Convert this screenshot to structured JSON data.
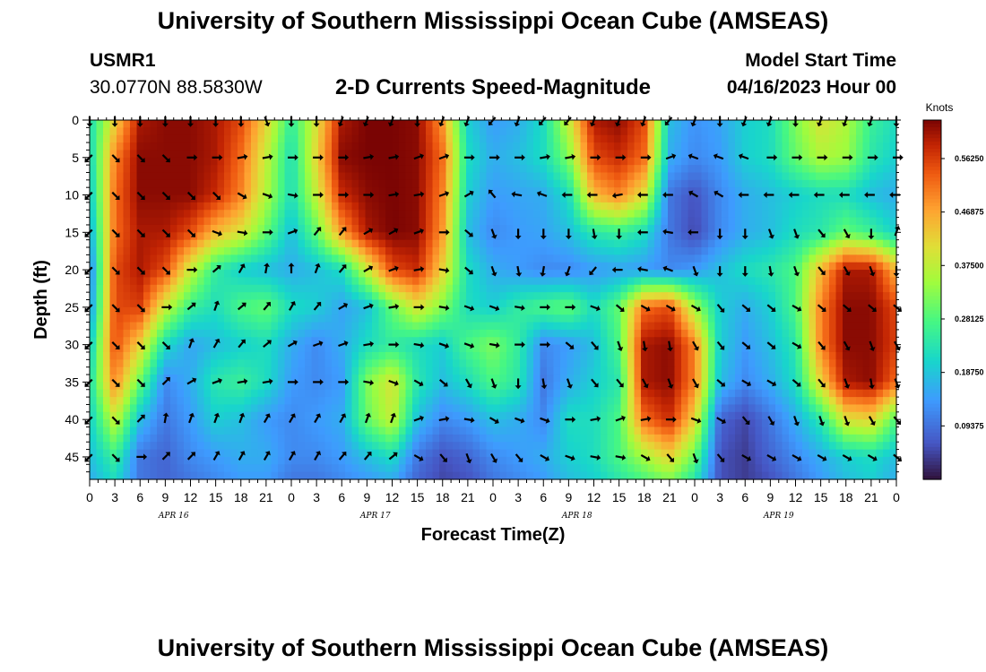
{
  "header": {
    "title": "University of Southern Mississippi Ocean Cube (AMSEAS)",
    "station_id": "USMR1",
    "coords": "30.0770N  88.5830W",
    "model_start_label": "Model Start Time",
    "model_start_value": "04/16/2023 Hour 00"
  },
  "footer": {
    "title": "University of Southern Mississippi Ocean Cube (AMSEAS)"
  },
  "chart_data": {
    "type": "heatmap",
    "title": "2-D Currents Speed-Magnitude",
    "xlabel": "Forecast Time(Z)",
    "ylabel": "Depth (ft)",
    "x_tick_labels": [
      "0",
      "3",
      "6",
      "9",
      "12",
      "15",
      "18",
      "21",
      "0",
      "3",
      "6",
      "9",
      "12",
      "15",
      "18",
      "21",
      "0",
      "3",
      "6",
      "9",
      "12",
      "15",
      "18",
      "21",
      "0",
      "3",
      "6",
      "9",
      "12",
      "15",
      "18",
      "21",
      "0"
    ],
    "date_labels": [
      {
        "label": "APR 16",
        "hour": 10
      },
      {
        "label": "APR 17",
        "hour": 34
      },
      {
        "label": "APR 18",
        "hour": 58
      },
      {
        "label": "APR 19",
        "hour": 82
      }
    ],
    "xlim_hours": [
      0,
      96
    ],
    "y_ticks": [
      0,
      5,
      10,
      15,
      20,
      25,
      30,
      35,
      40,
      45
    ],
    "ylim_ft": [
      0,
      48
    ],
    "colorbar": {
      "units": "Knots",
      "tick_labels": [
        "0.56250",
        "0.46875",
        "0.37500",
        "0.28125",
        "0.18750",
        "0.09375"
      ],
      "range": [
        0,
        0.63
      ]
    },
    "speed_grid": {
      "hours": [
        0,
        3,
        6,
        9,
        12,
        15,
        18,
        21,
        24,
        27,
        30,
        33,
        36,
        39,
        42,
        45,
        48,
        51,
        54,
        57,
        60,
        63,
        66,
        69,
        72,
        75,
        78,
        81,
        84,
        87,
        90,
        93,
        96
      ],
      "depths_ft": [
        0,
        5,
        10,
        15,
        20,
        25,
        30,
        35,
        40,
        45,
        48
      ],
      "speed_knots": [
        [
          0.22,
          0.42,
          0.6,
          0.62,
          0.62,
          0.6,
          0.55,
          0.42,
          0.25,
          0.4,
          0.6,
          0.63,
          0.63,
          0.62,
          0.48,
          0.2,
          0.14,
          0.16,
          0.22,
          0.38,
          0.6,
          0.62,
          0.55,
          0.18,
          0.13,
          0.15,
          0.2,
          0.22,
          0.32,
          0.4,
          0.36,
          0.26,
          0.22
        ],
        [
          0.2,
          0.5,
          0.62,
          0.62,
          0.62,
          0.6,
          0.52,
          0.38,
          0.22,
          0.42,
          0.62,
          0.63,
          0.63,
          0.62,
          0.52,
          0.22,
          0.16,
          0.18,
          0.22,
          0.32,
          0.55,
          0.58,
          0.52,
          0.16,
          0.12,
          0.14,
          0.2,
          0.22,
          0.3,
          0.36,
          0.34,
          0.24,
          0.2
        ],
        [
          0.18,
          0.52,
          0.62,
          0.62,
          0.62,
          0.58,
          0.5,
          0.36,
          0.22,
          0.38,
          0.58,
          0.62,
          0.63,
          0.62,
          0.5,
          0.2,
          0.14,
          0.15,
          0.16,
          0.22,
          0.45,
          0.5,
          0.4,
          0.1,
          0.06,
          0.12,
          0.16,
          0.18,
          0.2,
          0.22,
          0.22,
          0.18,
          0.16
        ],
        [
          0.15,
          0.52,
          0.6,
          0.6,
          0.55,
          0.45,
          0.4,
          0.3,
          0.18,
          0.3,
          0.48,
          0.6,
          0.63,
          0.62,
          0.48,
          0.18,
          0.12,
          0.14,
          0.15,
          0.18,
          0.24,
          0.26,
          0.22,
          0.1,
          0.05,
          0.12,
          0.16,
          0.18,
          0.22,
          0.24,
          0.3,
          0.26,
          0.2
        ],
        [
          0.1,
          0.55,
          0.6,
          0.55,
          0.38,
          0.25,
          0.2,
          0.18,
          0.16,
          0.18,
          0.22,
          0.38,
          0.55,
          0.58,
          0.42,
          0.22,
          0.16,
          0.14,
          0.12,
          0.12,
          0.14,
          0.15,
          0.14,
          0.12,
          0.14,
          0.18,
          0.22,
          0.24,
          0.28,
          0.45,
          0.6,
          0.6,
          0.45
        ],
        [
          0.12,
          0.55,
          0.56,
          0.38,
          0.26,
          0.22,
          0.28,
          0.3,
          0.22,
          0.2,
          0.15,
          0.18,
          0.3,
          0.4,
          0.32,
          0.22,
          0.2,
          0.25,
          0.28,
          0.3,
          0.22,
          0.3,
          0.52,
          0.55,
          0.35,
          0.2,
          0.16,
          0.2,
          0.28,
          0.5,
          0.62,
          0.62,
          0.55
        ],
        [
          0.18,
          0.55,
          0.42,
          0.22,
          0.15,
          0.18,
          0.2,
          0.22,
          0.16,
          0.12,
          0.16,
          0.22,
          0.25,
          0.22,
          0.2,
          0.28,
          0.32,
          0.25,
          0.12,
          0.14,
          0.18,
          0.28,
          0.6,
          0.62,
          0.5,
          0.2,
          0.14,
          0.18,
          0.24,
          0.5,
          0.62,
          0.62,
          0.56
        ],
        [
          0.22,
          0.5,
          0.3,
          0.12,
          0.16,
          0.24,
          0.26,
          0.22,
          0.14,
          0.12,
          0.14,
          0.32,
          0.4,
          0.24,
          0.18,
          0.22,
          0.28,
          0.24,
          0.1,
          0.16,
          0.2,
          0.24,
          0.6,
          0.62,
          0.5,
          0.18,
          0.12,
          0.16,
          0.22,
          0.42,
          0.6,
          0.62,
          0.52
        ],
        [
          0.2,
          0.38,
          0.18,
          0.1,
          0.14,
          0.2,
          0.18,
          0.14,
          0.12,
          0.14,
          0.16,
          0.3,
          0.38,
          0.18,
          0.12,
          0.14,
          0.18,
          0.16,
          0.12,
          0.22,
          0.22,
          0.28,
          0.52,
          0.58,
          0.42,
          0.08,
          0.05,
          0.1,
          0.16,
          0.24,
          0.4,
          0.42,
          0.28
        ],
        [
          0.18,
          0.26,
          0.1,
          0.08,
          0.12,
          0.14,
          0.16,
          0.16,
          0.12,
          0.12,
          0.14,
          0.18,
          0.22,
          0.1,
          0.06,
          0.08,
          0.12,
          0.14,
          0.16,
          0.2,
          0.22,
          0.28,
          0.35,
          0.42,
          0.3,
          0.06,
          0.04,
          0.08,
          0.12,
          0.16,
          0.2,
          0.22,
          0.18
        ],
        [
          0.16,
          0.22,
          0.1,
          0.08,
          0.1,
          0.12,
          0.14,
          0.14,
          0.1,
          0.1,
          0.12,
          0.14,
          0.16,
          0.08,
          0.05,
          0.06,
          0.1,
          0.12,
          0.14,
          0.18,
          0.2,
          0.24,
          0.28,
          0.32,
          0.24,
          0.06,
          0.04,
          0.06,
          0.1,
          0.14,
          0.18,
          0.2,
          0.16
        ]
      ]
    },
    "vector_grid": {
      "hours": [
        0,
        3,
        6,
        9,
        12,
        15,
        18,
        21,
        24,
        27,
        30,
        33,
        36,
        39,
        42,
        45,
        48,
        51,
        54,
        57,
        60,
        63,
        66,
        69,
        72,
        75,
        78,
        81,
        84,
        87,
        90,
        93,
        96
      ],
      "depths_ft": [
        0,
        5,
        10,
        15,
        20,
        25,
        30,
        35,
        40,
        45
      ],
      "direction_deg": [
        [
          180,
          180,
          180,
          180,
          180,
          180,
          180,
          160,
          180,
          180,
          200,
          200,
          200,
          180,
          200,
          200,
          220,
          200,
          220,
          220,
          200,
          200,
          200,
          220,
          200,
          180,
          200,
          200,
          180,
          200,
          200,
          200,
          180
        ],
        [
          225,
          135,
          135,
          135,
          90,
          90,
          80,
          80,
          90,
          90,
          90,
          80,
          80,
          70,
          70,
          90,
          90,
          90,
          80,
          80,
          90,
          90,
          90,
          70,
          290,
          290,
          290,
          90,
          90,
          90,
          90,
          90,
          90
        ],
        [
          225,
          135,
          135,
          135,
          135,
          135,
          120,
          110,
          100,
          90,
          90,
          90,
          80,
          80,
          70,
          60,
          320,
          280,
          290,
          270,
          270,
          260,
          270,
          270,
          300,
          300,
          270,
          270,
          270,
          270,
          270,
          270,
          270
        ],
        [
          225,
          135,
          135,
          135,
          135,
          110,
          100,
          90,
          70,
          40,
          40,
          60,
          60,
          70,
          90,
          130,
          160,
          180,
          180,
          180,
          170,
          180,
          270,
          280,
          270,
          180,
          180,
          160,
          160,
          140,
          150,
          180,
          20
        ],
        [
          225,
          135,
          135,
          135,
          90,
          50,
          30,
          10,
          0,
          20,
          40,
          60,
          70,
          80,
          100,
          130,
          160,
          170,
          190,
          200,
          220,
          270,
          280,
          290,
          160,
          180,
          180,
          170,
          160,
          140,
          150,
          160,
          180
        ],
        [
          225,
          135,
          135,
          90,
          50,
          20,
          50,
          40,
          30,
          40,
          60,
          70,
          80,
          90,
          100,
          110,
          110,
          100,
          90,
          90,
          110,
          130,
          120,
          120,
          120,
          140,
          130,
          130,
          120,
          130,
          130,
          130,
          130
        ],
        [
          225,
          135,
          135,
          135,
          20,
          30,
          40,
          50,
          60,
          70,
          70,
          80,
          90,
          100,
          110,
          110,
          100,
          90,
          90,
          130,
          140,
          160,
          170,
          170,
          150,
          140,
          130,
          130,
          120,
          140,
          150,
          160,
          150
        ],
        [
          225,
          135,
          135,
          45,
          60,
          70,
          80,
          80,
          90,
          90,
          90,
          100,
          110,
          120,
          130,
          150,
          160,
          180,
          170,
          160,
          140,
          140,
          150,
          160,
          150,
          130,
          120,
          120,
          130,
          140,
          160,
          170,
          160
        ],
        [
          225,
          135,
          45,
          10,
          20,
          20,
          20,
          30,
          30,
          30,
          30,
          20,
          20,
          70,
          80,
          100,
          120,
          110,
          110,
          90,
          80,
          70,
          80,
          90,
          110,
          120,
          140,
          150,
          160,
          160,
          160,
          150,
          140
        ],
        [
          225,
          135,
          90,
          45,
          45,
          30,
          30,
          30,
          30,
          30,
          40,
          40,
          50,
          120,
          140,
          160,
          150,
          140,
          120,
          110,
          100,
          100,
          120,
          140,
          160,
          140,
          120,
          120,
          120,
          120,
          120,
          120,
          130
        ]
      ]
    }
  }
}
